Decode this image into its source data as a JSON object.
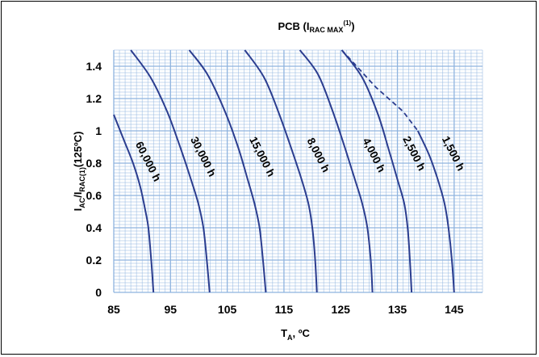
{
  "chart_data": {
    "type": "line",
    "title": {
      "main": "PCB (I",
      "sub": "RAC MAX",
      "sup": "(1)",
      "end": ")"
    },
    "xlabel": {
      "main": "T",
      "sub": "A",
      "rest": ", ºC"
    },
    "ylabel": {
      "main": "I",
      "sub1": "AC",
      "mid": "/I",
      "sub2": "RAC(1)",
      "rest": "(125ºC)"
    },
    "xlim": [
      85,
      150
    ],
    "ylim": [
      0,
      1.5
    ],
    "xticks": [
      "85",
      "95",
      "105",
      "115",
      "125",
      "135",
      "145"
    ],
    "yticks": [
      "0",
      "0.2",
      "0.4",
      "0.6",
      "0.8",
      "1",
      "1.2",
      "1.4"
    ],
    "grid": true,
    "colors": {
      "curve": "#2b3d8f",
      "grid": "#8fb4df",
      "frame": "#000000"
    },
    "series": [
      {
        "name": "60,000 h",
        "points": [
          [
            85,
            1.1
          ],
          [
            86.7,
            0.95
          ],
          [
            88.4,
            0.8
          ],
          [
            89.7,
            0.65
          ],
          [
            90.6,
            0.5
          ],
          [
            91.1,
            0.4
          ],
          [
            91.6,
            0.2
          ],
          [
            92,
            0
          ]
        ],
        "label_at": [
          90.5,
          0.8
        ]
      },
      {
        "name": "30,000 h",
        "points": [
          [
            88,
            1.5
          ],
          [
            91.5,
            1.33
          ],
          [
            94.4,
            1.12
          ],
          [
            96.7,
            0.9
          ],
          [
            98.6,
            0.7
          ],
          [
            99.9,
            0.55
          ],
          [
            100.8,
            0.4
          ],
          [
            101.4,
            0.2
          ],
          [
            101.9,
            0
          ]
        ],
        "label_at": [
          100.2,
          0.83
        ]
      },
      {
        "name": "15,000 h",
        "points": [
          [
            98.3,
            1.5
          ],
          [
            101.5,
            1.35
          ],
          [
            104.6,
            1.12
          ],
          [
            106.9,
            0.9
          ],
          [
            108.6,
            0.7
          ],
          [
            109.8,
            0.55
          ],
          [
            110.7,
            0.4
          ],
          [
            111.3,
            0.2
          ],
          [
            111.8,
            0
          ]
        ],
        "label_at": [
          110.6,
          0.83
        ]
      },
      {
        "name": "8,000 h",
        "points": [
          [
            108.1,
            1.5
          ],
          [
            111.5,
            1.33
          ],
          [
            114.2,
            1.1
          ],
          [
            116.4,
            0.88
          ],
          [
            118.1,
            0.7
          ],
          [
            119.3,
            0.55
          ],
          [
            120,
            0.4
          ],
          [
            120.5,
            0.2
          ],
          [
            120.8,
            0
          ]
        ],
        "label_at": [
          120.5,
          0.84
        ]
      },
      {
        "name": "4,000 h",
        "points": [
          [
            117.8,
            1.5
          ],
          [
            121,
            1.35
          ],
          [
            123.6,
            1.12
          ],
          [
            125.7,
            0.9
          ],
          [
            127.5,
            0.7
          ],
          [
            128.8,
            0.55
          ],
          [
            129.7,
            0.4
          ],
          [
            130.3,
            0.2
          ],
          [
            130.6,
            0
          ]
        ],
        "label_at": [
          130.3,
          0.84
        ]
      },
      {
        "name": "2,500 h",
        "points": [
          [
            125.2,
            1.5
          ],
          [
            128.8,
            1.33
          ],
          [
            131.6,
            1.1
          ],
          [
            133.5,
            0.88
          ],
          [
            135,
            0.7
          ],
          [
            136.2,
            0.55
          ],
          [
            136.8,
            0.4
          ],
          [
            137.2,
            0.2
          ],
          [
            137.5,
            0
          ]
        ],
        "label_at": [
          137.4,
          0.85
        ]
      },
      {
        "name": "1,500 h",
        "points": [
          [
            138.6,
            1.0
          ],
          [
            140.6,
            0.85
          ],
          [
            142.1,
            0.7
          ],
          [
            143.3,
            0.55
          ],
          [
            144,
            0.4
          ],
          [
            144.6,
            0.2
          ],
          [
            145,
            0
          ]
        ],
        "label_at": [
          144.3,
          0.85
        ]
      }
    ],
    "limit_line": {
      "style": "dashed",
      "points": [
        [
          125.2,
          1.5
        ],
        [
          131.2,
          1.27
        ],
        [
          136,
          1.12
        ],
        [
          138.6,
          1.0
        ]
      ]
    }
  }
}
